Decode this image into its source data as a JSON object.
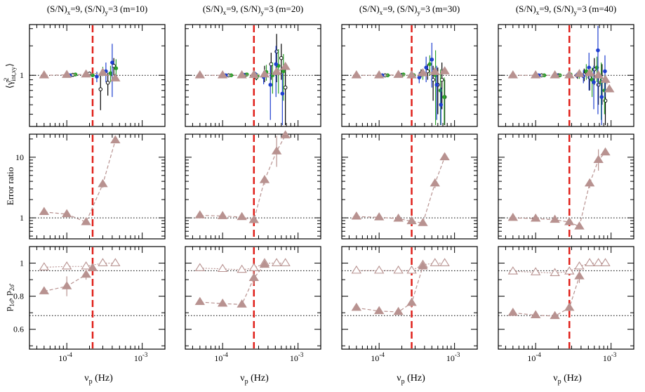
{
  "figure": {
    "column_titles": [
      {
        "base": "(S/N)",
        "s1": "x",
        "mid": "=9, (S/N)",
        "s2": "y",
        "tail": "=3 (m=10)"
      },
      {
        "base": "(S/N)",
        "s1": "x",
        "mid": "=9, (S/N)",
        "s2": "y",
        "tail": "=3 (m=20)"
      },
      {
        "base": "(S/N)",
        "s1": "x",
        "mid": "=9, (S/N)",
        "s2": "y",
        "tail": "=3 (m=30)"
      },
      {
        "base": "(S/N)",
        "s1": "x",
        "mid": "=9, (S/N)",
        "s2": "y",
        "tail": "=3 (m=40)"
      }
    ],
    "xlabel": {
      "base": "ν",
      "sub": "p",
      "tail": " (Hz)"
    },
    "row_labels": {
      "row1": {
        "lead": "⟨",
        "base": "γ̂",
        "sup": "2",
        "sub": "int,xy",
        "trail": "⟩"
      },
      "row2": "Error ratio",
      "row3": {
        "p1": "p",
        "s1": "1σ̂",
        "sep": ", p",
        "s2": "2σ̂"
      }
    },
    "x_tick_labels": [
      {
        "base": "10",
        "exp": "-4"
      },
      {
        "base": "10",
        "exp": "-3"
      }
    ],
    "row1_tick_labels": [
      "1"
    ],
    "row2_tick_labels": [
      "1",
      "10"
    ],
    "row3_tick_labels": [
      "0.6",
      "0.8",
      "1"
    ],
    "colors": {
      "model": "#b89290",
      "cut": "#e0201a",
      "black": "#000000",
      "green": "#2ca02c",
      "blue": "#1f3fd0"
    }
  },
  "chart_data": [
    {
      "type": "scatter",
      "panel": "coherence",
      "m": 10,
      "xscale": "log",
      "yscale": "log",
      "xlim": [
        3.2e-05,
        0.002
      ],
      "ylim": [
        0.3,
        3.3
      ],
      "reference_line": 1,
      "cutoff_frequency": 0.00022,
      "model": {
        "x": [
          5e-05,
          0.0001,
          0.00018,
          0.0003,
          0.00044
        ],
        "y": [
          1.0,
          1.01,
          1.02,
          1.06,
          0.93
        ]
      },
      "series": [
        {
          "name": "black",
          "x": [
            0.00012,
            0.0002,
            0.00028,
            0.00035,
            0.00042
          ],
          "y": [
            1.01,
            1.04,
            0.72,
            0.84,
            1.25
          ],
          "err": [
            0.02,
            0.05,
            0.28,
            0.22,
            0.25
          ]
        },
        {
          "name": "green",
          "x": [
            0.00013,
            0.00022,
            0.0003,
            0.00038,
            0.00045
          ],
          "y": [
            1.02,
            1.0,
            1.1,
            1.05,
            1.18
          ],
          "err": [
            0.02,
            0.04,
            0.12,
            0.2,
            0.28
          ]
        },
        {
          "name": "blue",
          "x": [
            0.00011,
            0.00018,
            0.00025,
            0.00033,
            0.0004
          ],
          "y": [
            1.0,
            1.02,
            0.97,
            1.1,
            1.35
          ],
          "err": [
            0.02,
            0.03,
            0.12,
            0.25,
            0.75
          ]
        }
      ]
    },
    {
      "type": "scatter",
      "panel": "coherence",
      "m": 20,
      "xscale": "log",
      "yscale": "log",
      "xlim": [
        3.2e-05,
        0.002
      ],
      "ylim": [
        0.3,
        3.3
      ],
      "reference_line": 1,
      "cutoff_frequency": 0.00026,
      "model": {
        "x": [
          5e-05,
          0.0001,
          0.00018,
          0.00026,
          0.00036,
          0.00052,
          0.00068
        ],
        "y": [
          1.0,
          1.0,
          1.0,
          1.01,
          1.02,
          1.08,
          1.22
        ]
      },
      "series": [
        {
          "name": "black",
          "x": [
            0.00012,
            0.0002,
            0.00028,
            0.00036,
            0.00044,
            0.00052,
            0.0006,
            0.00068
          ],
          "y": [
            1.0,
            1.01,
            0.95,
            1.05,
            1.3,
            1.75,
            1.5,
            0.75
          ],
          "err": [
            0.02,
            0.03,
            0.06,
            0.2,
            0.4,
            0.9,
            0.6,
            0.45
          ]
        },
        {
          "name": "green",
          "x": [
            0.00013,
            0.00021,
            0.00029,
            0.00038,
            0.00046,
            0.00055,
            0.00064
          ],
          "y": [
            1.0,
            1.02,
            0.98,
            1.08,
            1.0,
            1.25,
            1.1
          ],
          "err": [
            0.02,
            0.03,
            0.07,
            0.2,
            0.35,
            0.6,
            0.55
          ]
        },
        {
          "name": "blue",
          "x": [
            0.00011,
            0.00019,
            0.00027,
            0.00035,
            0.00043,
            0.00051,
            0.00062
          ],
          "y": [
            1.0,
            1.01,
            1.03,
            0.96,
            0.8,
            1.3,
            0.65
          ],
          "err": [
            0.02,
            0.03,
            0.06,
            0.15,
            0.45,
            0.7,
            0.4
          ]
        }
      ]
    },
    {
      "type": "scatter",
      "panel": "coherence",
      "m": 30,
      "xscale": "log",
      "yscale": "log",
      "xlim": [
        3.2e-05,
        0.002
      ],
      "ylim": [
        0.3,
        3.3
      ],
      "reference_line": 1,
      "cutoff_frequency": 0.00027,
      "model": {
        "x": [
          5e-05,
          0.0001,
          0.00018,
          0.00027,
          0.00038,
          0.00055,
          0.00074
        ],
        "y": [
          1.0,
          1.0,
          1.01,
          1.0,
          1.05,
          1.08,
          1.1
        ]
      },
      "series": [
        {
          "name": "black",
          "x": [
            0.00012,
            0.0002,
            0.00028,
            0.00036,
            0.00044,
            0.00052,
            0.0006,
            0.00068,
            0.00074
          ],
          "y": [
            1.0,
            1.01,
            0.98,
            1.05,
            1.1,
            0.9,
            0.8,
            0.9,
            0.6
          ],
          "err": [
            0.02,
            0.03,
            0.05,
            0.1,
            0.2,
            0.35,
            0.4,
            0.45,
            0.3
          ]
        },
        {
          "name": "green",
          "x": [
            0.00013,
            0.00021,
            0.00029,
            0.00038,
            0.00047,
            0.00056,
            0.00065,
            0.00073
          ],
          "y": [
            1.0,
            1.02,
            1.0,
            1.02,
            1.3,
            1.0,
            0.7,
            0.6
          ],
          "err": [
            0.02,
            0.03,
            0.05,
            0.12,
            0.3,
            0.8,
            0.45,
            0.35
          ]
        },
        {
          "name": "blue",
          "x": [
            0.00011,
            0.00019,
            0.00026,
            0.00034,
            0.00042,
            0.0005,
            0.00058,
            0.00066
          ],
          "y": [
            1.0,
            1.0,
            0.98,
            0.95,
            1.2,
            1.45,
            0.8,
            0.5
          ],
          "err": [
            0.02,
            0.03,
            0.05,
            0.12,
            0.35,
            0.7,
            0.45,
            0.25
          ]
        }
      ]
    },
    {
      "type": "scatter",
      "panel": "coherence",
      "m": 40,
      "xscale": "log",
      "yscale": "log",
      "xlim": [
        3.2e-05,
        0.002
      ],
      "ylim": [
        0.3,
        3.3
      ],
      "reference_line": 1,
      "cutoff_frequency": 0.00028,
      "model": {
        "x": [
          5e-05,
          0.0001,
          0.00018,
          0.00028,
          0.00038,
          0.00052,
          0.00068,
          0.00084,
          0.00095
        ],
        "y": [
          1.0,
          1.0,
          1.0,
          1.0,
          1.03,
          1.05,
          1.0,
          0.9,
          0.72
        ]
      },
      "series": [
        {
          "name": "black",
          "x": [
            0.00012,
            0.0002,
            0.00028,
            0.00036,
            0.00044,
            0.00052,
            0.0006,
            0.00068,
            0.00076,
            0.00084
          ],
          "y": [
            1.0,
            1.0,
            1.01,
            1.0,
            1.02,
            0.95,
            1.15,
            0.8,
            0.9,
            0.55
          ],
          "err": [
            0.02,
            0.03,
            0.04,
            0.08,
            0.15,
            0.25,
            0.35,
            0.3,
            0.4,
            0.3
          ]
        },
        {
          "name": "green",
          "x": [
            0.00013,
            0.00021,
            0.00029,
            0.00038,
            0.00047,
            0.00056,
            0.00065,
            0.00074,
            0.00082
          ],
          "y": [
            1.0,
            1.0,
            1.02,
            1.0,
            1.1,
            0.9,
            1.2,
            0.85,
            0.7
          ],
          "err": [
            0.02,
            0.03,
            0.04,
            0.08,
            0.2,
            0.3,
            0.35,
            0.5,
            0.3
          ]
        },
        {
          "name": "blue",
          "x": [
            0.00011,
            0.00019,
            0.00027,
            0.00035,
            0.00043,
            0.00051,
            0.00059,
            0.00067,
            0.00075,
            0.00083
          ],
          "y": [
            1.0,
            1.0,
            1.0,
            1.0,
            0.98,
            1.2,
            0.85,
            1.8,
            0.6,
            1.1
          ],
          "err": [
            0.02,
            0.03,
            0.04,
            0.06,
            0.15,
            0.5,
            0.4,
            1.4,
            0.3,
            0.5
          ]
        }
      ]
    },
    {
      "type": "line",
      "panel": "error_ratio",
      "m": 10,
      "xscale": "log",
      "yscale": "log",
      "xlim": [
        3.2e-05,
        0.002
      ],
      "ylim": [
        0.45,
        24
      ],
      "reference_line": 1,
      "cutoff_frequency": 0.00022,
      "model": {
        "x": [
          5e-05,
          0.0001,
          0.00018,
          0.0003,
          0.00044
        ],
        "y": [
          1.25,
          1.15,
          0.85,
          3.6,
          19
        ],
        "err": [
          0,
          0,
          0,
          0.15,
          0
        ]
      }
    },
    {
      "type": "line",
      "panel": "error_ratio",
      "m": 20,
      "xscale": "log",
      "yscale": "log",
      "xlim": [
        3.2e-05,
        0.002
      ],
      "ylim": [
        0.45,
        24
      ],
      "reference_line": 1,
      "cutoff_frequency": 0.00026,
      "model": {
        "x": [
          5e-05,
          0.0001,
          0.00018,
          0.00026,
          0.00036,
          0.00052,
          0.00068
        ],
        "y": [
          1.1,
          1.07,
          1.03,
          0.92,
          4.2,
          12.5,
          23
        ],
        "err": [
          0,
          0,
          0,
          0,
          0.2,
          0.8,
          0
        ]
      }
    },
    {
      "type": "line",
      "panel": "error_ratio",
      "m": 30,
      "xscale": "log",
      "yscale": "log",
      "xlim": [
        3.2e-05,
        0.002
      ],
      "ylim": [
        0.45,
        24
      ],
      "reference_line": 1,
      "cutoff_frequency": 0.00027,
      "model": {
        "x": [
          5e-05,
          0.0001,
          0.00018,
          0.00027,
          0.00038,
          0.00055,
          0.00074
        ],
        "y": [
          1.05,
          1.02,
          0.97,
          0.88,
          0.82,
          3.7,
          10
        ],
        "err": [
          0,
          0,
          0,
          0,
          0,
          0.2,
          0
        ]
      }
    },
    {
      "type": "line",
      "panel": "error_ratio",
      "m": 40,
      "xscale": "log",
      "yscale": "log",
      "xlim": [
        3.2e-05,
        0.002
      ],
      "ylim": [
        0.45,
        24
      ],
      "reference_line": 1,
      "cutoff_frequency": 0.00028,
      "model": {
        "x": [
          5e-05,
          0.0001,
          0.00018,
          0.00028,
          0.00038,
          0.00052,
          0.00068,
          0.00084
        ],
        "y": [
          1.0,
          0.97,
          0.93,
          0.85,
          0.72,
          3.7,
          9,
          12
        ],
        "err": [
          0,
          0,
          0,
          0,
          0,
          0.2,
          0.5,
          0
        ]
      }
    },
    {
      "type": "line",
      "panel": "coverage",
      "m": 10,
      "xscale": "log",
      "xlim": [
        3.2e-05,
        0.002
      ],
      "ylim": [
        0.48,
        1.1
      ],
      "reference_lines": [
        0.683,
        0.954
      ],
      "cutoff_frequency": 0.00022,
      "p_1sigma": {
        "x": [
          5e-05,
          0.0001,
          0.00018,
          0.00022
        ],
        "y": [
          0.83,
          0.86,
          0.93,
          0.97
        ],
        "err": [
          0,
          0.06,
          0.03,
          0
        ]
      },
      "p_2sigma": {
        "x": [
          5e-05,
          0.0001,
          0.00018,
          0.0003,
          0.00044
        ],
        "y": [
          0.975,
          0.98,
          0.98,
          1.0,
          1.0
        ]
      }
    },
    {
      "type": "line",
      "panel": "coverage",
      "m": 20,
      "xscale": "log",
      "xlim": [
        3.2e-05,
        0.002
      ],
      "ylim": [
        0.48,
        1.1
      ],
      "reference_lines": [
        0.683,
        0.954
      ],
      "cutoff_frequency": 0.00026,
      "p_1sigma": {
        "x": [
          5e-05,
          0.0001,
          0.00018,
          0.00026,
          0.00036
        ],
        "y": [
          0.765,
          0.755,
          0.75,
          0.91,
          0.99
        ],
        "err": [
          0,
          0,
          0,
          0.04,
          0
        ]
      },
      "p_2sigma": {
        "x": [
          5e-05,
          0.0001,
          0.00018,
          0.00026,
          0.00036,
          0.00052,
          0.00068
        ],
        "y": [
          0.97,
          0.965,
          0.96,
          0.97,
          1.0,
          1.0,
          1.0
        ]
      }
    },
    {
      "type": "line",
      "panel": "coverage",
      "m": 30,
      "xscale": "log",
      "xlim": [
        3.2e-05,
        0.002
      ],
      "ylim": [
        0.48,
        1.1
      ],
      "reference_lines": [
        0.683,
        0.954
      ],
      "cutoff_frequency": 0.00027,
      "p_1sigma": {
        "x": [
          5e-05,
          0.0001,
          0.00018,
          0.00027,
          0.00038
        ],
        "y": [
          0.73,
          0.71,
          0.705,
          0.76,
          0.98
        ],
        "err": [
          0,
          0,
          0,
          0.03,
          0
        ]
      },
      "p_2sigma": {
        "x": [
          5e-05,
          0.0001,
          0.00018,
          0.00027,
          0.00038,
          0.00055,
          0.00074
        ],
        "y": [
          0.955,
          0.955,
          0.955,
          0.955,
          0.99,
          1.0,
          1.0
        ]
      }
    },
    {
      "type": "line",
      "panel": "coverage",
      "m": 40,
      "xscale": "log",
      "xlim": [
        3.2e-05,
        0.002
      ],
      "ylim": [
        0.48,
        1.1
      ],
      "reference_lines": [
        0.683,
        0.954
      ],
      "cutoff_frequency": 0.00028,
      "p_1sigma": {
        "x": [
          5e-05,
          0.0001,
          0.00018,
          0.00028,
          0.00038
        ],
        "y": [
          0.7,
          0.685,
          0.68,
          0.73,
          0.92
        ],
        "err": [
          0,
          0,
          0,
          0.02,
          0.04
        ]
      },
      "p_2sigma": {
        "x": [
          5e-05,
          0.0001,
          0.00018,
          0.00028,
          0.00038,
          0.00052,
          0.00068,
          0.00084
        ],
        "y": [
          0.95,
          0.945,
          0.94,
          0.95,
          0.98,
          1.0,
          1.0,
          1.0
        ]
      }
    }
  ]
}
